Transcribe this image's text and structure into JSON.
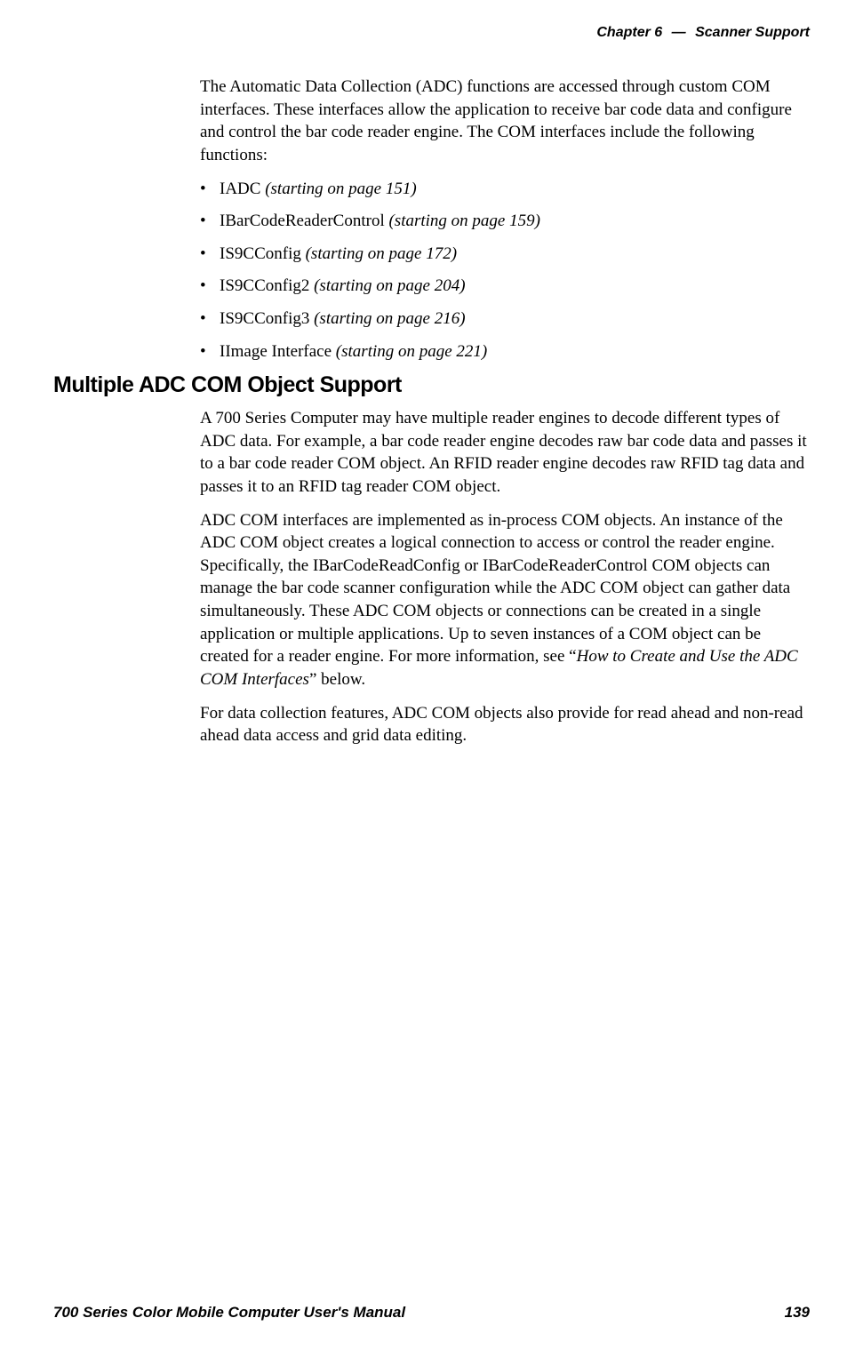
{
  "header": {
    "chapter_label": "Chapter",
    "chapter_number": "6",
    "dash": "—",
    "title": "Scanner Support"
  },
  "intro_paragraph": "The Automatic Data Collection (ADC) functions are accessed through custom COM interfaces. These interfaces allow the application to receive bar code data and configure and control the bar code reader engine. The COM interfaces include the following functions:",
  "interfaces": [
    {
      "name": "IADC",
      "ref": "(starting on page 151)"
    },
    {
      "name": "IBarCodeReaderControl",
      "ref": "(starting on page 159)"
    },
    {
      "name": "IS9CConfig",
      "ref": "(starting on page 172)"
    },
    {
      "name": "IS9CConfig2",
      "ref": "(starting on page 204)"
    },
    {
      "name": "IS9CConfig3",
      "ref": "(starting on page 216)"
    },
    {
      "name": "IImage Interface",
      "ref": "(starting on page 221)"
    }
  ],
  "section_heading": "Multiple ADC COM Object Support",
  "section_paras": {
    "p1": "A 700 Series Computer may have multiple reader engines to decode different types of ADC data. For example, a bar code reader engine decodes raw bar code data and passes it to a bar code reader COM object. An RFID reader engine decodes raw RFID tag data and passes it to an RFID tag reader COM object.",
    "p2_before": "ADC COM interfaces are implemented as in-process COM objects. An instance of the ADC COM object creates a logical connection to access or control the reader engine. Specifically, the IBarCodeReadConfig or IBarCodeReaderControl COM objects can manage the bar code scanner configuration while the ADC COM object can gather data simultaneously. These ADC COM objects or connections can be created in a single application or multiple applications. Up to seven instances of a COM object can be created for a reader engine. For more information, see “",
    "p2_italic": "How to Create and Use the ADC COM Interfaces",
    "p2_after": "” below.",
    "p3": "For data collection features, ADC COM objects also provide for read ahead and non-read ahead data access and grid data editing."
  },
  "footer": {
    "manual_title": "700 Series Color Mobile Computer User's Manual",
    "page_number": "139"
  },
  "colors": {
    "background": "#ffffff",
    "text": "#000000"
  },
  "fonts": {
    "body_family": "Georgia, 'Times New Roman', serif",
    "heading_family": "'Helvetica Neue', Arial, sans-serif",
    "body_size": 19,
    "heading_size": 25,
    "header_footer_size": 16
  }
}
